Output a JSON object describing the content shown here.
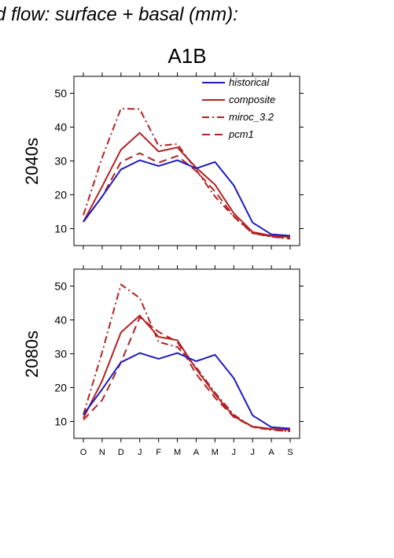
{
  "figure": {
    "title": "d flow: surface + basal (mm):",
    "scenario": "A1B"
  },
  "chart_data": [
    {
      "type": "line",
      "panel_label": "2040s",
      "x": [
        "O",
        "N",
        "D",
        "J",
        "F",
        "M",
        "A",
        "M",
        "J",
        "J",
        "A",
        "S"
      ],
      "ylim": [
        5,
        55
      ],
      "yticks": [
        10,
        20,
        30,
        40,
        50
      ],
      "legend": {
        "position": "top-right",
        "entries": [
          "historical",
          "composite",
          "miroc_3.2",
          "pcm1"
        ]
      },
      "series": [
        {
          "name": "historical",
          "color": "#1c1cbe",
          "dash": "solid",
          "values": [
            12,
            19.5,
            27.5,
            30.2,
            28.5,
            30.2,
            27.8,
            29.7,
            22.8,
            11.8,
            8.3,
            7.9
          ]
        },
        {
          "name": "composite",
          "color": "#b22222",
          "dash": "solid",
          "values": [
            12,
            22.5,
            33.3,
            38.3,
            32.8,
            34.0,
            28.0,
            23.0,
            14.5,
            9.0,
            7.9,
            7.5
          ]
        },
        {
          "name": "miroc_3.2",
          "color": "#b22222",
          "dash": "dashdot",
          "values": [
            14,
            31,
            45.5,
            45.3,
            34.5,
            35.0,
            27.3,
            19.5,
            13.5,
            8.6,
            7.6,
            7.0
          ]
        },
        {
          "name": "pcm1",
          "color": "#b22222",
          "dash": "dash",
          "values": [
            12,
            19.5,
            29.7,
            32.3,
            29.5,
            31.5,
            27.0,
            21.0,
            13.7,
            8.7,
            7.7,
            7.1
          ]
        }
      ]
    },
    {
      "type": "line",
      "panel_label": "2080s",
      "x": [
        "O",
        "N",
        "D",
        "J",
        "F",
        "M",
        "A",
        "M",
        "J",
        "J",
        "A",
        "S"
      ],
      "ylim": [
        5,
        55
      ],
      "yticks": [
        10,
        20,
        30,
        40,
        50
      ],
      "series": [
        {
          "name": "historical",
          "color": "#1c1cbe",
          "dash": "solid",
          "values": [
            12,
            19.5,
            27.5,
            30.2,
            28.5,
            30.2,
            27.8,
            29.7,
            22.8,
            11.8,
            8.3,
            7.9
          ]
        },
        {
          "name": "composite",
          "color": "#b22222",
          "dash": "solid",
          "values": [
            11,
            22,
            36.3,
            41.3,
            35.0,
            34.0,
            25.5,
            18.0,
            11.5,
            8.5,
            7.8,
            7.5
          ]
        },
        {
          "name": "miroc_3.2",
          "color": "#b22222",
          "dash": "dashdot",
          "values": [
            12,
            30.5,
            50.5,
            46.5,
            33.5,
            32.0,
            26.0,
            18.5,
            12.0,
            8.3,
            7.5,
            7.1
          ]
        },
        {
          "name": "pcm1",
          "color": "#b22222",
          "dash": "dash",
          "values": [
            10.5,
            16.3,
            27.5,
            40.8,
            36.5,
            33.5,
            24.0,
            17.0,
            11.3,
            8.4,
            7.6,
            7.1
          ]
        }
      ]
    }
  ]
}
